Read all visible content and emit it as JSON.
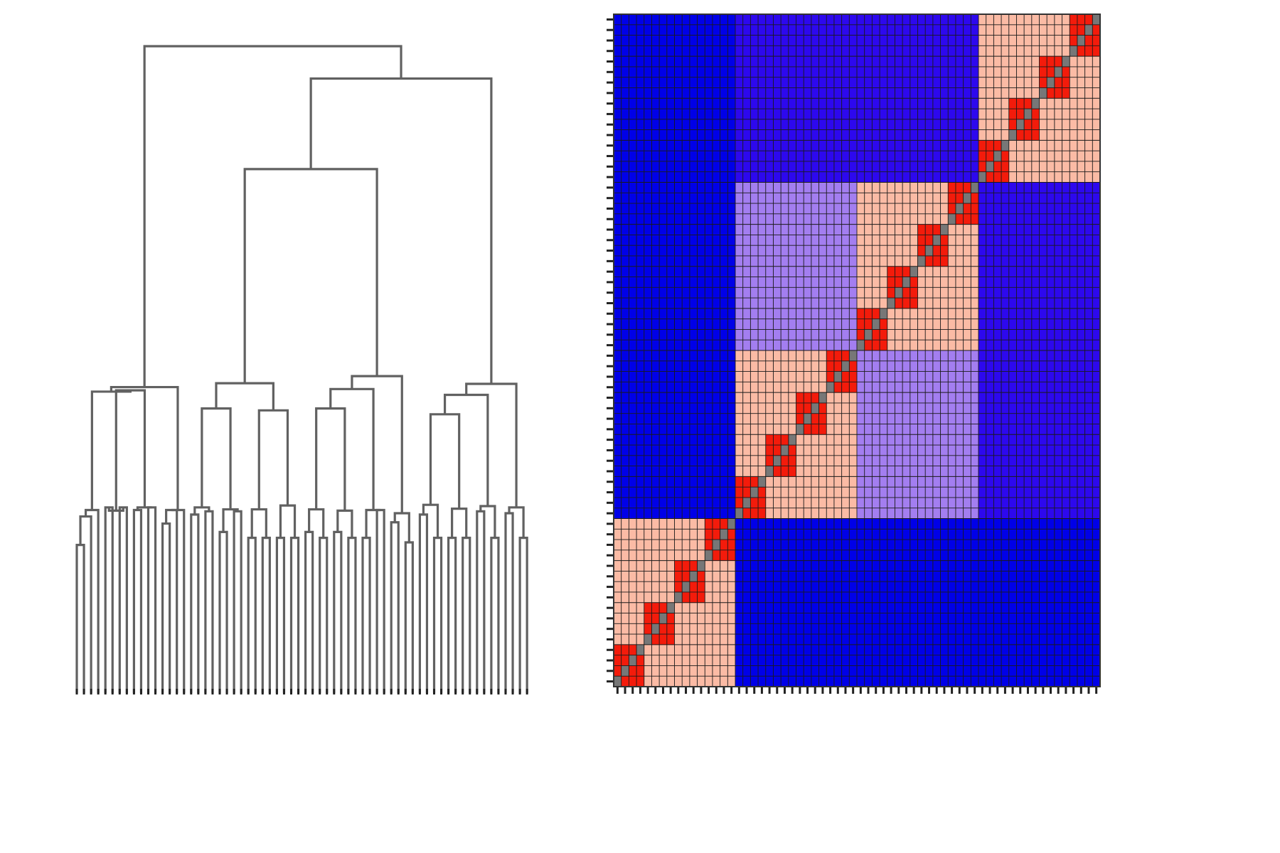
{
  "chart_data": [
    {
      "type": "dendrogram",
      "leaf_count": 64,
      "orientation": "top-down",
      "line_color": "#616161",
      "tick_color": "#222222",
      "title": "",
      "xlabel": "",
      "ylabel": "",
      "merge_heights": {
        "root": 1.0,
        "right_subtree": 0.95,
        "middle_subtree": 0.81,
        "left_group": 0.47,
        "group2": 0.48,
        "group3": 0.49,
        "group4": 0.48
      }
    },
    {
      "type": "heatmap",
      "rows": 64,
      "cols": 64,
      "block_size": 16,
      "sub_block_size": 4,
      "grid": true,
      "legend": "none",
      "title": "",
      "xlabel": "",
      "ylabel": "",
      "colors": {
        "diagonal": "#777777",
        "sub_block": "#f31b0b",
        "block": "#fbbba5",
        "near_block": "#a37ef0",
        "mid_far": "#2d08ee",
        "far": "#0000e8",
        "gridline": "#1a1a1a"
      },
      "block_relations": [
        [
          "block",
          "far",
          "far",
          "far"
        ],
        [
          "far",
          "block",
          "near_block",
          "mid_far"
        ],
        [
          "far",
          "near_block",
          "block",
          "mid_far"
        ],
        [
          "far",
          "mid_far",
          "mid_far",
          "block"
        ]
      ]
    }
  ]
}
